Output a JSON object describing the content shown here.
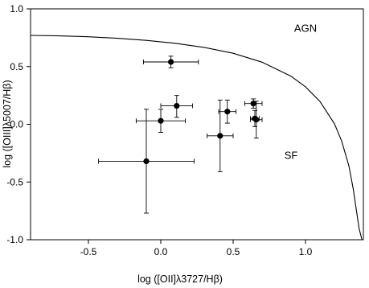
{
  "chart_data": {
    "type": "scatter",
    "title": "",
    "xlabel": "log ([OII]λ3727/Hβ)",
    "ylabel": "log ([OIII]λ5007/Hβ)",
    "xlim": [
      -0.9,
      1.4
    ],
    "ylim": [
      -1.0,
      1.0
    ],
    "x_ticks": [
      -0.5,
      0.0,
      0.5,
      1.0
    ],
    "x_tick_labels": [
      "-0.5",
      "0.0",
      "0.5",
      "1.0"
    ],
    "y_ticks": [
      -1.0,
      -0.5,
      0.0,
      0.5,
      1.0
    ],
    "y_tick_labels": [
      "-1.0",
      "-0.5",
      "0.0",
      "0.5",
      "1.0"
    ],
    "grid": false,
    "legend": "none",
    "annotations": [
      {
        "text": "AGN",
        "x": 1.0,
        "y": 0.8
      },
      {
        "text": "SF",
        "x": 0.9,
        "y": -0.3
      }
    ],
    "points": [
      {
        "x": 0.07,
        "y": 0.54,
        "xerr_low": 0.19,
        "xerr_high": 0.19,
        "yerr_low": 0.05,
        "yerr_high": 0.05
      },
      {
        "x": 0.11,
        "y": 0.16,
        "xerr_low": 0.11,
        "xerr_high": 0.11,
        "yerr_low": 0.1,
        "yerr_high": 0.09
      },
      {
        "x": 0.0,
        "y": 0.03,
        "xerr_low": 0.17,
        "xerr_high": 0.17,
        "yerr_low": 0.1,
        "yerr_high": 0.1
      },
      {
        "x": -0.1,
        "y": -0.32,
        "xerr_low": 0.33,
        "xerr_high": 0.33,
        "yerr_low": 0.45,
        "yerr_high": 0.45
      },
      {
        "x": 0.46,
        "y": 0.11,
        "xerr_low": 0.06,
        "xerr_high": 0.06,
        "yerr_low": 0.1,
        "yerr_high": 0.1
      },
      {
        "x": 0.41,
        "y": -0.1,
        "xerr_low": 0.09,
        "xerr_high": 0.09,
        "yerr_low": 0.31,
        "yerr_high": 0.31
      },
      {
        "x": 0.64,
        "y": 0.18,
        "xerr_low": 0.06,
        "xerr_high": 0.06,
        "yerr_low": 0.04,
        "yerr_high": 0.04
      },
      {
        "x": 0.65,
        "y": 0.05,
        "xerr_low": 0.03,
        "xerr_high": 0.03,
        "yerr_low": 0.07,
        "yerr_high": 0.07
      },
      {
        "x": 0.66,
        "y": 0.04,
        "xerr_low": 0.04,
        "xerr_high": 0.04,
        "yerr_low": 0.16,
        "yerr_high": 0.16
      }
    ],
    "curve": {
      "name": "",
      "x": [
        -0.9,
        -0.7,
        -0.5,
        -0.3,
        -0.1,
        0.1,
        0.3,
        0.5,
        0.7,
        0.9,
        1.0,
        1.1,
        1.2,
        1.25,
        1.3,
        1.33,
        1.35,
        1.37,
        1.39
      ],
      "y": [
        0.77,
        0.766,
        0.758,
        0.745,
        0.727,
        0.702,
        0.666,
        0.615,
        0.538,
        0.417,
        0.325,
        0.198,
        0.005,
        -0.145,
        -0.36,
        -0.56,
        -0.73,
        -0.9,
        -1.0
      ]
    }
  }
}
